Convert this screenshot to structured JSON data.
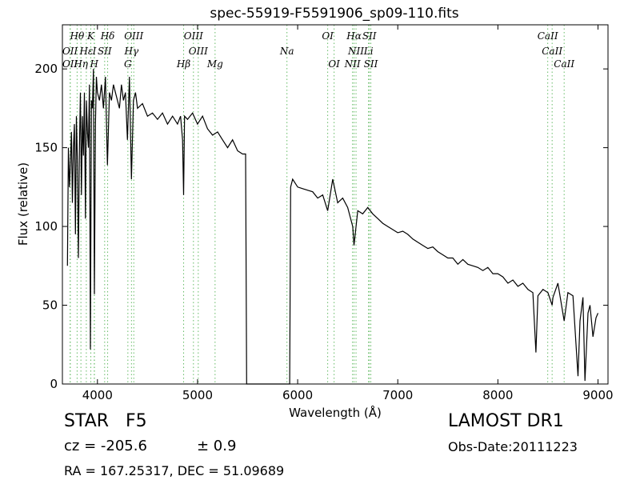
{
  "chart_data": {
    "type": "line",
    "title": "spec-55919-F5591906_sp09-110.fits",
    "xlabel": "Wavelength (Å)",
    "ylabel": "Flux (relative)",
    "xlim": [
      3650,
      9100
    ],
    "ylim": [
      0,
      228
    ],
    "xticks": [
      4000,
      5000,
      6000,
      7000,
      8000,
      9000
    ],
    "yticks": [
      0,
      50,
      100,
      150,
      200
    ],
    "grid": false,
    "series": [
      {
        "color": "#000000",
        "x": [
          3700,
          3710,
          3720,
          3730,
          3740,
          3750,
          3760,
          3770,
          3780,
          3790,
          3800,
          3810,
          3820,
          3830,
          3840,
          3850,
          3860,
          3870,
          3880,
          3890,
          3900,
          3910,
          3920,
          3930,
          3940,
          3950,
          3960,
          3970,
          3980,
          3990,
          4000,
          4020,
          4040,
          4060,
          4080,
          4100,
          4120,
          4140,
          4160,
          4180,
          4200,
          4220,
          4240,
          4260,
          4280,
          4300,
          4320,
          4340,
          4360,
          4380,
          4400,
          4450,
          4500,
          4550,
          4600,
          4650,
          4700,
          4750,
          4800,
          4830,
          4850,
          4861,
          4870,
          4900,
          4950,
          5000,
          5050,
          5100,
          5150,
          5200,
          5250,
          5300,
          5350,
          5400,
          5450,
          5480,
          5490,
          5500,
          5550,
          5600,
          5700,
          5800,
          5900,
          5920,
          5930,
          5950,
          6000,
          6050,
          6100,
          6150,
          6200,
          6250,
          6300,
          6350,
          6400,
          6450,
          6500,
          6550,
          6563,
          6600,
          6650,
          6700,
          6750,
          6800,
          6850,
          6900,
          6950,
          7000,
          7050,
          7100,
          7150,
          7200,
          7250,
          7300,
          7350,
          7400,
          7450,
          7500,
          7550,
          7600,
          7650,
          7700,
          7750,
          7800,
          7850,
          7900,
          7950,
          8000,
          8050,
          8100,
          8150,
          8200,
          8250,
          8300,
          8350,
          8380,
          8400,
          8450,
          8500,
          8542,
          8550,
          8600,
          8662,
          8700,
          8750,
          8800,
          8820,
          8850,
          8870,
          8900,
          8920,
          8950,
          8980,
          9000
        ],
        "y": [
          75,
          150,
          125,
          140,
          160,
          115,
          150,
          165,
          95,
          170,
          140,
          80,
          150,
          185,
          120,
          170,
          145,
          185,
          105,
          180,
          160,
          150,
          190,
          22,
          180,
          175,
          200,
          57,
          165,
          195,
          185,
          180,
          190,
          175,
          195,
          139,
          185,
          180,
          190,
          185,
          180,
          175,
          190,
          180,
          185,
          155,
          195,
          130,
          180,
          185,
          175,
          178,
          170,
          172,
          168,
          172,
          165,
          170,
          165,
          170,
          155,
          120,
          170,
          168,
          172,
          165,
          170,
          162,
          158,
          160,
          155,
          150,
          155,
          148,
          146,
          146,
          0,
          0,
          0,
          0,
          0,
          0,
          0,
          0,
          125,
          130,
          125,
          124,
          123,
          122,
          118,
          120,
          110,
          130,
          115,
          118,
          112,
          100,
          88,
          110,
          108,
          112,
          108,
          105,
          102,
          100,
          98,
          96,
          97,
          95,
          92,
          90,
          88,
          86,
          87,
          84,
          82,
          80,
          80,
          76,
          79,
          76,
          75,
          74,
          72,
          74,
          70,
          70,
          68,
          64,
          66,
          62,
          64,
          60,
          58,
          20,
          56,
          60,
          58,
          50,
          55,
          64,
          40,
          58,
          56,
          5,
          40,
          55,
          2,
          45,
          50,
          30,
          42,
          45
        ]
      }
    ],
    "spectral_lines": [
      {
        "label": "Hθ",
        "x": 3797,
        "row": 0
      },
      {
        "label": "K",
        "x": 3934,
        "row": 0
      },
      {
        "label": "Hδ",
        "x": 4102,
        "row": 0
      },
      {
        "label": "OIII",
        "x": 4363,
        "row": 0
      },
      {
        "label": "OIII",
        "x": 4959,
        "row": 0
      },
      {
        "label": "OI",
        "x": 6300,
        "row": 0
      },
      {
        "label": "Hα",
        "x": 6563,
        "row": 0
      },
      {
        "label": "SII",
        "x": 6716,
        "row": 0
      },
      {
        "label": "CaII",
        "x": 8498,
        "row": 0
      },
      {
        "label": "OII",
        "x": 3727,
        "row": 1
      },
      {
        "label": "Hε",
        "x": 3889,
        "row": 1
      },
      {
        "label": "I",
        "x": 3970,
        "row": 1
      },
      {
        "label": "SII",
        "x": 4072,
        "row": 1
      },
      {
        "label": "Hγ",
        "x": 4340,
        "row": 1
      },
      {
        "label": "OIII",
        "x": 5007,
        "row": 1
      },
      {
        "label": "Na",
        "x": 5893,
        "row": 1
      },
      {
        "label": "NII",
        "x": 6583,
        "row": 1
      },
      {
        "label": "Li",
        "x": 6708,
        "row": 1
      },
      {
        "label": "CaII",
        "x": 8542,
        "row": 1
      },
      {
        "label": "OII",
        "x": 3727,
        "row": 2
      },
      {
        "label": "Hη",
        "x": 3835,
        "row": 2
      },
      {
        "label": "H",
        "x": 3968,
        "row": 2
      },
      {
        "label": "G",
        "x": 4304,
        "row": 2
      },
      {
        "label": "Hβ",
        "x": 4861,
        "row": 2
      },
      {
        "label": "Mg",
        "x": 5175,
        "row": 2
      },
      {
        "label": "OI",
        "x": 6364,
        "row": 2
      },
      {
        "label": "NII",
        "x": 6548,
        "row": 2
      },
      {
        "label": "SII",
        "x": 6731,
        "row": 2
      },
      {
        "label": "CaII",
        "x": 8662,
        "row": 2
      }
    ],
    "spectral_line_positions": [
      3727,
      3729,
      3797,
      3835,
      3889,
      3934,
      3968,
      3970,
      4072,
      4102,
      4304,
      4340,
      4363,
      4861,
      4959,
      5007,
      5175,
      5893,
      6300,
      6364,
      6548,
      6563,
      6583,
      6708,
      6716,
      6731,
      8498,
      8542,
      8662
    ],
    "spectral_line_color": "#66bb66"
  },
  "info": {
    "object_class": "STAR",
    "subclass": "F5",
    "survey": "LAMOST DR1",
    "cz": "cz = -205.6",
    "cz_err": "± 0.9",
    "obs_date": "Obs-Date:20111223",
    "coords": "RA = 167.25317, DEC = 51.09689"
  }
}
